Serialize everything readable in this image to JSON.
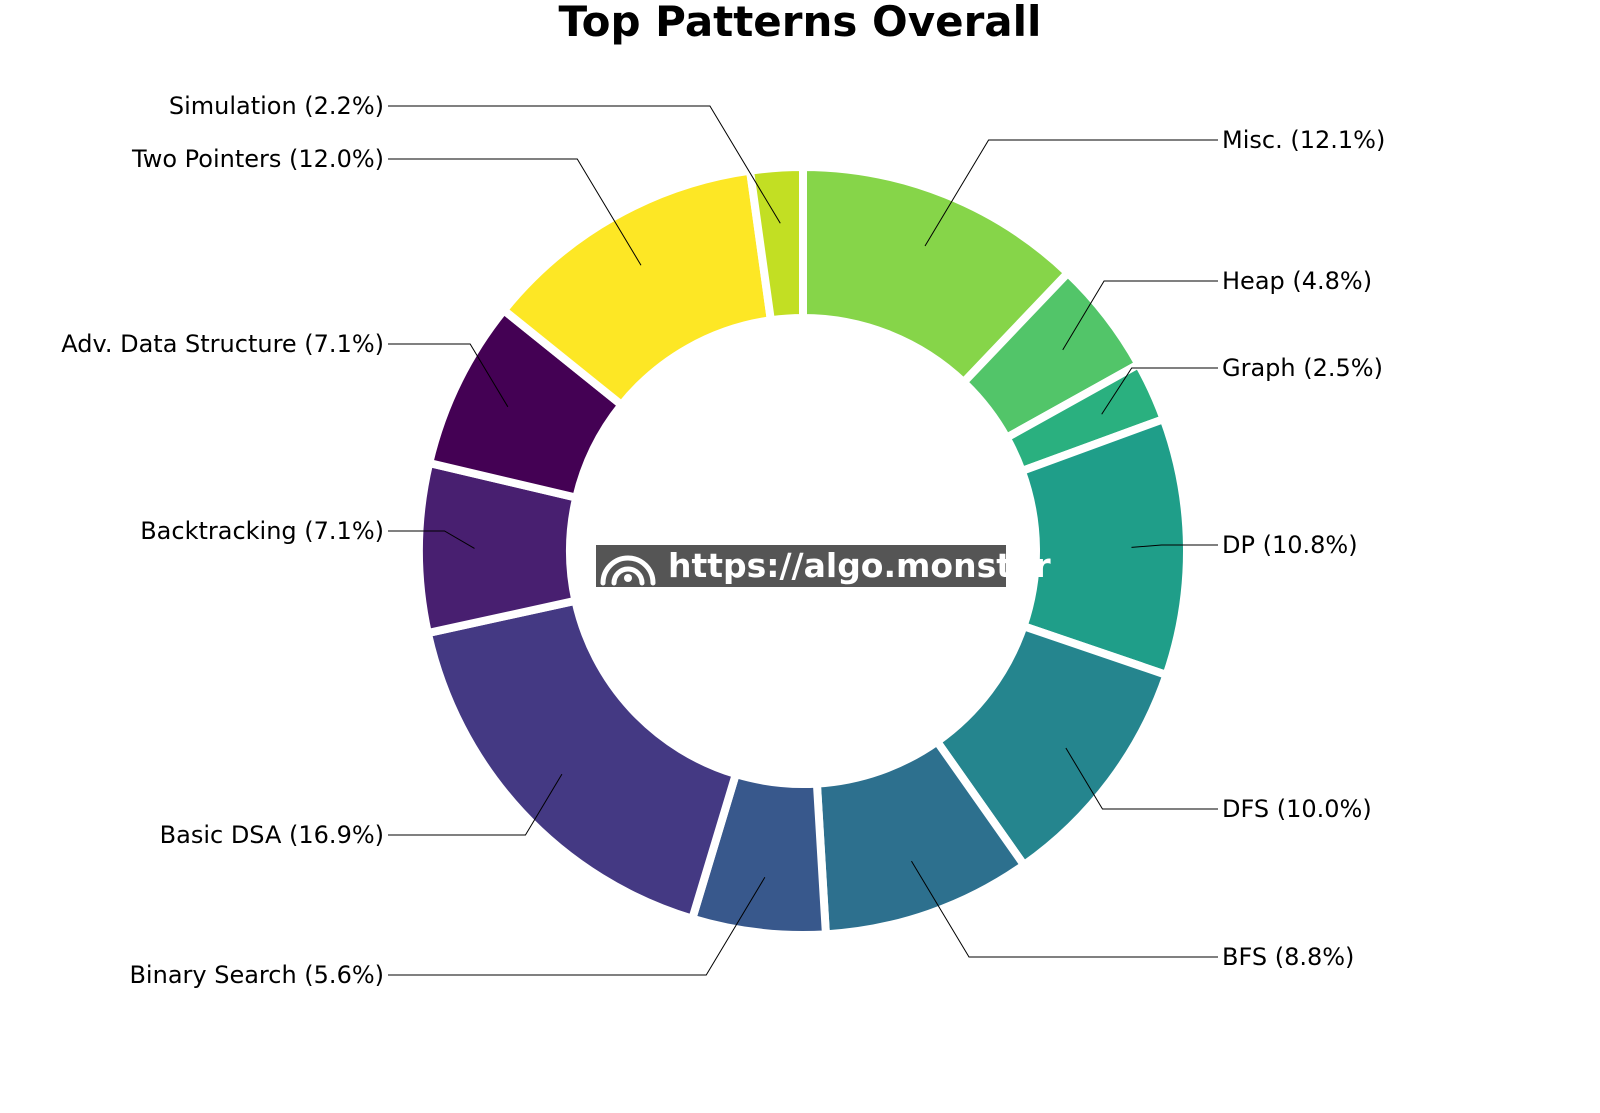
{
  "chart_data": {
    "type": "pie",
    "variant": "donut",
    "title": "Top Patterns Overall",
    "start_angle_deg": 90,
    "direction": "clockwise",
    "slices": [
      {
        "name": "Misc.",
        "value": 12.1,
        "label": "Misc. (12.1%)",
        "color": "#86d549"
      },
      {
        "name": "Heap",
        "value": 4.8,
        "label": "Heap (4.8%)",
        "color": "#52c569"
      },
      {
        "name": "Graph",
        "value": 2.5,
        "label": "Graph (2.5%)",
        "color": "#2ab07f"
      },
      {
        "name": "DP",
        "value": 10.8,
        "label": "DP (10.8%)",
        "color": "#1f9e89"
      },
      {
        "name": "DFS",
        "value": 10.0,
        "label": "DFS (10.0%)",
        "color": "#25858e"
      },
      {
        "name": "BFS",
        "value": 8.8,
        "label": "BFS (8.8%)",
        "color": "#2d708e"
      },
      {
        "name": "Binary Search",
        "value": 5.6,
        "label": "Binary Search (5.6%)",
        "color": "#38588c"
      },
      {
        "name": "Basic DSA",
        "value": 16.9,
        "label": "Basic DSA (16.9%)",
        "color": "#443983"
      },
      {
        "name": "Backtracking",
        "value": 7.1,
        "label": "Backtracking (7.1%)",
        "color": "#481f70"
      },
      {
        "name": "Adv. Data Structure",
        "value": 7.1,
        "label": "Adv. Data Structure (7.1%)",
        "color": "#440154"
      },
      {
        "name": "Two Pointers",
        "value": 12.0,
        "label": "Two Pointers (12.0%)",
        "color": "#fde725"
      },
      {
        "name": "Simulation",
        "value": 2.2,
        "label": "Simulation (2.2%)",
        "color": "#c2df23"
      }
    ]
  },
  "watermark": {
    "text": "https://algo.monster",
    "background": "#555555"
  }
}
